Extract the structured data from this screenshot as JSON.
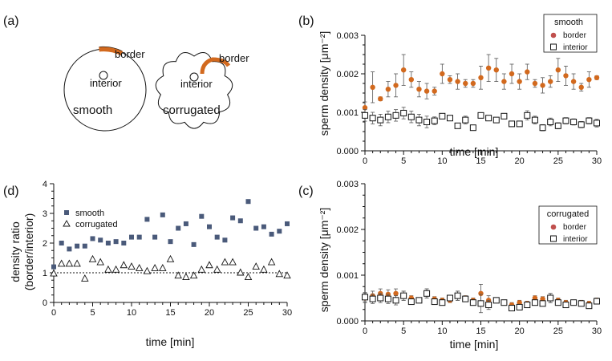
{
  "colors": {
    "orange": "#d2691e",
    "navy": "#4a5a7a",
    "legend_dot": "#c0504d"
  },
  "panel_a": {
    "label": "(a)",
    "smooth_label": "smooth",
    "corrugated_label": "corrugated",
    "border_label": "border",
    "interior_label": "interior"
  },
  "chart_data": [
    {
      "id": "b",
      "panel_label": "(b)",
      "type": "scatter",
      "xlabel": "time [min]",
      "ylabel": "sperm density  [μm⁻²]",
      "xlim": [
        0,
        30
      ],
      "ylim": [
        0,
        0.003
      ],
      "xticks": [
        0,
        5,
        10,
        15,
        20,
        25,
        30
      ],
      "yticks": [
        "0.000",
        "0.001",
        "0.002",
        "0.003"
      ],
      "legend_title": "smooth",
      "series": [
        {
          "name": "border",
          "marker": "filled-circle",
          "x": [
            0,
            1,
            2,
            3,
            4,
            5,
            6,
            7,
            8,
            9,
            10,
            11,
            12,
            13,
            14,
            15,
            16,
            17,
            18,
            19,
            20,
            21,
            22,
            23,
            24,
            25,
            26,
            27,
            28,
            29,
            30
          ],
          "y": [
            0.00112,
            0.00165,
            0.00135,
            0.0016,
            0.0017,
            0.0021,
            0.00185,
            0.0016,
            0.00155,
            0.00155,
            0.002,
            0.00185,
            0.0018,
            0.00175,
            0.00175,
            0.0019,
            0.00215,
            0.0021,
            0.0018,
            0.002,
            0.0018,
            0.00205,
            0.00175,
            0.0017,
            0.0018,
            0.0021,
            0.00195,
            0.0018,
            0.00165,
            0.00185,
            0.0019
          ],
          "err": [
            0.00015,
            0.0004,
            5e-05,
            0.0002,
            0.0003,
            0.0004,
            0.0002,
            0.0002,
            0.0002,
            0.0001,
            0.00025,
            0.0001,
            0.0002,
            0.0001,
            0.0001,
            0.0003,
            0.00035,
            0.0003,
            0.0002,
            0.00025,
            0.0002,
            0.0002,
            0.0001,
            0.0002,
            0.00015,
            0.0003,
            0.00025,
            0.0002,
            0.0001,
            0.0002,
            5e-05
          ]
        },
        {
          "name": "interior",
          "marker": "open-square",
          "x": [
            0,
            1,
            2,
            3,
            4,
            5,
            6,
            7,
            8,
            9,
            10,
            11,
            12,
            13,
            14,
            15,
            16,
            17,
            18,
            19,
            20,
            21,
            22,
            23,
            24,
            25,
            26,
            27,
            28,
            29,
            30
          ],
          "y": [
            0.00092,
            0.00085,
            0.0008,
            0.00088,
            0.00092,
            0.00098,
            0.00088,
            0.0008,
            0.00075,
            0.00078,
            0.0009,
            0.00085,
            0.00065,
            0.0008,
            0.0006,
            0.00092,
            0.00085,
            0.0008,
            0.0009,
            0.0007,
            0.0007,
            0.00092,
            0.0008,
            0.0006,
            0.00075,
            0.00065,
            0.00078,
            0.00075,
            0.00068,
            0.00078,
            0.00072
          ],
          "err": [
            0.00015,
            0.00015,
            0.00015,
            0.00015,
            0.00015,
            0.00015,
            0.00015,
            0.00015,
            0.00015,
            0.0001,
            5e-05,
            5e-05,
            5e-05,
            0.0001,
            5e-05,
            5e-05,
            5e-05,
            5e-05,
            5e-05,
            5e-05,
            5e-05,
            0.00012,
            0.0001,
            8e-05,
            0.0001,
            8e-05,
            8e-05,
            8e-05,
            8e-05,
            8e-05,
            0.0001
          ]
        }
      ]
    },
    {
      "id": "c",
      "panel_label": "(c)",
      "type": "scatter",
      "xlabel": "time [min]",
      "ylabel": "sperm density  [μm⁻²]",
      "xlim": [
        0,
        30
      ],
      "ylim": [
        0,
        0.003
      ],
      "xticks": [
        0,
        5,
        10,
        15,
        20,
        25,
        30
      ],
      "yticks": [
        "0.000",
        "0.001",
        "0.002",
        "0.003"
      ],
      "legend_title": "corrugated",
      "series": [
        {
          "name": "border",
          "marker": "filled-circle",
          "x": [
            0,
            1,
            2,
            3,
            4,
            5,
            6,
            7,
            8,
            9,
            10,
            11,
            12,
            13,
            14,
            15,
            16,
            17,
            18,
            19,
            20,
            21,
            22,
            23,
            24,
            25,
            26,
            27,
            28,
            29,
            30
          ],
          "y": [
            0.0005,
            0.00055,
            0.0006,
            0.00058,
            0.0006,
            0.00055,
            0.0005,
            0.00045,
            0.0006,
            0.00048,
            0.00045,
            0.00045,
            0.00055,
            0.0005,
            0.00045,
            0.0006,
            0.00045,
            0.00045,
            0.0004,
            0.00035,
            0.0004,
            0.00038,
            0.0005,
            0.00048,
            0.0005,
            0.00045,
            0.0004,
            0.0004,
            0.0004,
            0.00038,
            0.00045
          ],
          "err": [
            0.0001,
            0.0001,
            0.0001,
            0.0001,
            0.0001,
            0.0001,
            5e-05,
            5e-05,
            0.0001,
            5e-05,
            5e-05,
            5e-05,
            0.0001,
            5e-05,
            5e-05,
            0.0002,
            0.0001,
            5e-05,
            5e-05,
            5e-05,
            5e-05,
            5e-05,
            5e-05,
            5e-05,
            0.0001,
            5e-05,
            5e-05,
            5e-05,
            5e-05,
            5e-05,
            5e-05
          ]
        },
        {
          "name": "interior",
          "marker": "open-square",
          "x": [
            0,
            1,
            2,
            3,
            4,
            5,
            6,
            7,
            8,
            9,
            10,
            11,
            12,
            13,
            14,
            15,
            16,
            17,
            18,
            19,
            20,
            21,
            22,
            23,
            24,
            25,
            26,
            27,
            28,
            29,
            30
          ],
          "y": [
            0.00052,
            0.00048,
            0.0005,
            0.00048,
            0.00045,
            0.00055,
            0.00042,
            0.00045,
            0.0006,
            0.00042,
            0.0004,
            0.0005,
            0.00055,
            0.00048,
            0.0004,
            0.00038,
            0.00035,
            0.00045,
            0.0004,
            0.00028,
            0.0003,
            0.00035,
            0.0004,
            0.00038,
            0.0005,
            0.0004,
            0.00035,
            0.0004,
            0.00038,
            0.00033,
            0.00043
          ],
          "err": [
            0.0001,
            0.0001,
            0.0001,
            0.0001,
            0.0001,
            0.0001,
            5e-05,
            5e-05,
            0.0001,
            5e-05,
            5e-05,
            5e-05,
            0.0001,
            5e-05,
            5e-05,
            0.0002,
            0.0001,
            5e-05,
            5e-05,
            5e-05,
            5e-05,
            5e-05,
            5e-05,
            5e-05,
            0.0001,
            5e-05,
            5e-05,
            5e-05,
            5e-05,
            5e-05,
            5e-05
          ]
        }
      ]
    },
    {
      "id": "d",
      "panel_label": "(d)",
      "type": "scatter",
      "xlabel": "time [min]",
      "ylabel": "density ratio",
      "ylabel2": "(border/interior)",
      "xlim": [
        0,
        30
      ],
      "ylim": [
        0,
        4
      ],
      "xticks": [
        0,
        5,
        10,
        15,
        20,
        25,
        30
      ],
      "yticks": [
        "0",
        "1",
        "2",
        "3",
        "4"
      ],
      "reference_line": 1,
      "series": [
        {
          "name": "smooth",
          "marker": "filled-square",
          "x": [
            0,
            1,
            2,
            3,
            4,
            5,
            6,
            7,
            8,
            9,
            10,
            11,
            12,
            13,
            14,
            15,
            16,
            17,
            18,
            19,
            20,
            21,
            22,
            23,
            24,
            25,
            26,
            27,
            28,
            29,
            30
          ],
          "y": [
            1.2,
            2.0,
            1.8,
            1.9,
            1.9,
            2.15,
            2.1,
            2.0,
            2.05,
            2.0,
            2.2,
            2.2,
            2.8,
            2.2,
            2.95,
            2.05,
            2.5,
            2.65,
            1.95,
            2.9,
            2.55,
            2.2,
            2.1,
            2.85,
            2.75,
            3.4,
            2.5,
            2.55,
            2.3,
            2.4,
            2.65
          ]
        },
        {
          "name": "corrugated",
          "marker": "open-triangle",
          "x": [
            0,
            1,
            2,
            3,
            4,
            5,
            6,
            7,
            8,
            9,
            10,
            11,
            12,
            13,
            14,
            15,
            16,
            17,
            18,
            19,
            20,
            21,
            22,
            23,
            24,
            25,
            26,
            27,
            28,
            29,
            30
          ],
          "y": [
            0.97,
            1.3,
            1.3,
            1.3,
            0.8,
            1.45,
            1.35,
            1.1,
            1.1,
            1.25,
            1.2,
            1.15,
            1.05,
            1.15,
            1.15,
            1.45,
            0.9,
            0.85,
            0.9,
            1.1,
            1.25,
            1.1,
            1.35,
            1.35,
            1.0,
            0.85,
            1.2,
            1.1,
            1.35,
            0.95,
            0.9
          ]
        }
      ]
    }
  ]
}
